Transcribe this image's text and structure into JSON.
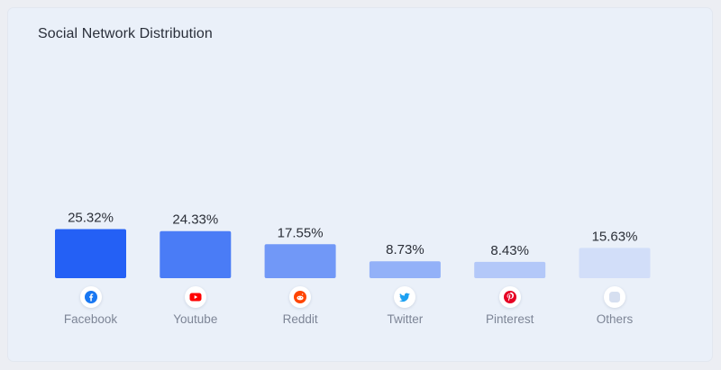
{
  "card": {
    "title": "Social Network Distribution"
  },
  "chart_data": {
    "type": "bar",
    "title": "Social Network Distribution",
    "categories": [
      "Facebook",
      "Youtube",
      "Reddit",
      "Twitter",
      "Pinterest",
      "Others"
    ],
    "values": [
      25.32,
      24.33,
      17.55,
      8.73,
      8.43,
      15.63
    ],
    "value_labels": [
      "25.32%",
      "24.33%",
      "17.55%",
      "8.73%",
      "8.43%",
      "15.63%"
    ],
    "unit": "%",
    "grid": false,
    "legend": "none",
    "bar_colors": [
      "#2460f5",
      "#4a7cf6",
      "#7198f7",
      "#93b1f8",
      "#b3c8f9",
      "#d2def9"
    ],
    "icons": [
      {
        "name": "facebook-icon",
        "color": "#1877f2"
      },
      {
        "name": "youtube-icon",
        "color": "#ff0000"
      },
      {
        "name": "reddit-icon",
        "color": "#ff4500"
      },
      {
        "name": "twitter-icon",
        "color": "#1da1f2"
      },
      {
        "name": "pinterest-icon",
        "color": "#e60023"
      },
      {
        "name": "others-icon",
        "color": "#d6dff0"
      }
    ]
  }
}
